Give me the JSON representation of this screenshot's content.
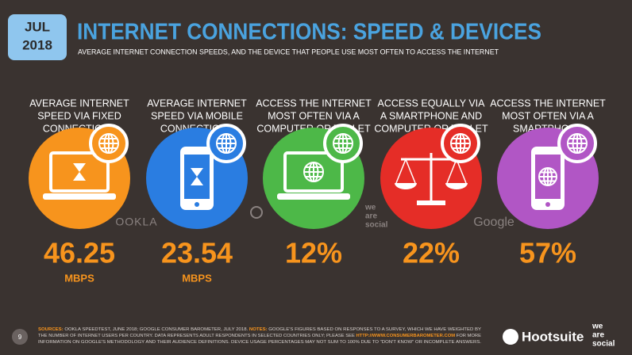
{
  "badge": {
    "month": "JUL",
    "year": "2018"
  },
  "header": {
    "title": "INTERNET CONNECTIONS: SPEED & DEVICES",
    "subtitle": "AVERAGE INTERNET CONNECTION SPEEDS, AND THE DEVICE THAT PEOPLE USE MOST OFTEN TO ACCESS THE INTERNET"
  },
  "columns": [
    {
      "label_lines": [
        "AVERAGE INTERNET",
        "SPEED VIA FIXED",
        "CONNECTIONS"
      ],
      "value": "46.25",
      "unit": "MBPS",
      "color": "#f7941d"
    },
    {
      "label_lines": [
        "AVERAGE INTERNET",
        "SPEED VIA MOBILE",
        "CONNECTIONS"
      ],
      "value": "23.54",
      "unit": "MBPS",
      "color": "#2a7de1"
    },
    {
      "label_lines": [
        "ACCESS THE INTERNET",
        "MOST OFTEN VIA A",
        "COMPUTER OR TABLET"
      ],
      "value": "12%",
      "color": "#4db848"
    },
    {
      "label_lines": [
        "ACCESS EQUALLY VIA",
        "A SMARTPHONE AND",
        "COMPUTER OR TABLET"
      ],
      "value": "22%",
      "color": "#e52d27"
    },
    {
      "label_lines": [
        "ACCESS THE INTERNET",
        "MOST OFTEN VIA A",
        "SMARTPHONE"
      ],
      "value": "57%",
      "color": "#b156c5"
    }
  ],
  "source_logos": {
    "ookla": "OOKLA",
    "we_are_social": [
      "we",
      "are",
      "social"
    ],
    "google": "Google"
  },
  "footer": {
    "page_number": "9",
    "lines": [
      [
        {
          "text": "SOURCES:",
          "highlight": true
        },
        {
          "text": " OOKLA SPEEDTEST, JUNE 2018; GOOGLE CONSUMER BAROMETER, JULY 2018. "
        },
        {
          "text": "NOTES:",
          "highlight": true
        },
        {
          "text": " GOOGLE'S FIGURES BASED ON RESPONSES TO A SURVEY, WHICH WE HAVE WEIGHTED BY"
        }
      ],
      [
        {
          "text": "THE NUMBER OF INTERNET USERS PER COUNTRY. DATA REPRESENTS ADULT RESPONDENTS IN SELECTED COUNTRIES ONLY; PLEASE SEE "
        },
        {
          "text": "HTTP://WWW.CONSUMERBAROMETER.COM",
          "highlight": true
        },
        {
          "text": " FOR MORE"
        }
      ],
      [
        {
          "text": "INFORMATION ON GOOGLE'S METHODOLOGY AND THEIR AUDIENCE DEFINITIONS. DEVICE USAGE PERCENTAGES MAY NOT SUM TO 100% DUE TO \"DON'T KNOW\" OR INCOMPLETE ANSWERS."
        }
      ]
    ],
    "brand": "Hootsuite",
    "we_are_social": [
      "we",
      "are",
      "social"
    ]
  }
}
